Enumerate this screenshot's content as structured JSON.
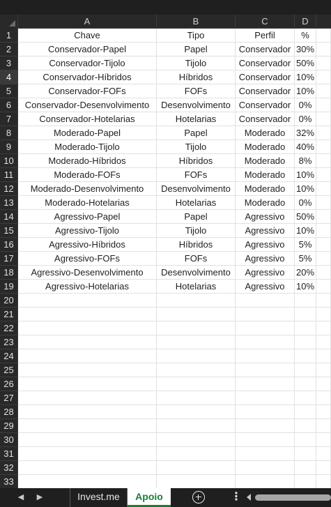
{
  "columns": [
    "A",
    "B",
    "C",
    "D"
  ],
  "rows": [
    [
      "Chave",
      "Tipo",
      "Perfil",
      "%"
    ],
    [
      "Conservador-Papel",
      "Papel",
      "Conservador",
      "30%"
    ],
    [
      "Conservador-Tijolo",
      "Tijolo",
      "Conservador",
      "50%"
    ],
    [
      "Conservador-Híbridos",
      "Híbridos",
      "Conservador",
      "10%"
    ],
    [
      "Conservador-FOFs",
      "FOFs",
      "Conservador",
      "10%"
    ],
    [
      "Conservador-Desenvolvimento",
      "Desenvolvimento",
      "Conservador",
      "0%"
    ],
    [
      "Conservador-Hotelarias",
      "Hotelarias",
      "Conservador",
      "0%"
    ],
    [
      "Moderado-Papel",
      "Papel",
      "Moderado",
      "32%"
    ],
    [
      "Moderado-Tijolo",
      "Tijolo",
      "Moderado",
      "40%"
    ],
    [
      "Moderado-Híbridos",
      "Híbridos",
      "Moderado",
      "8%"
    ],
    [
      "Moderado-FOFs",
      "FOFs",
      "Moderado",
      "10%"
    ],
    [
      "Moderado-Desenvolvimento",
      "Desenvolvimento",
      "Moderado",
      "10%"
    ],
    [
      "Moderado-Hotelarias",
      "Hotelarias",
      "Moderado",
      "0%"
    ],
    [
      "Agressivo-Papel",
      "Papel",
      "Agressivo",
      "50%"
    ],
    [
      "Agressivo-Tijolo",
      "Tijolo",
      "Agressivo",
      "10%"
    ],
    [
      "Agressivo-Híbridos",
      "Híbridos",
      "Agressivo",
      "5%"
    ],
    [
      "Agressivo-FOFs",
      "FOFs",
      "Agressivo",
      "5%"
    ],
    [
      "Agressivo-Desenvolvimento",
      "Desenvolvimento",
      "Agressivo",
      "20%"
    ],
    [
      "Agressivo-Hotelarias",
      "Hotelarias",
      "Agressivo",
      "10%"
    ]
  ],
  "row_numbers": [
    "1",
    "2",
    "3",
    "4",
    "5",
    "6",
    "7",
    "8",
    "9",
    "10",
    "11",
    "12",
    "13",
    "14",
    "15",
    "16",
    "17",
    "18",
    "19",
    "20",
    "21",
    "22",
    "23",
    "24",
    "25",
    "26",
    "27",
    "28",
    "29",
    "30",
    "31",
    "32",
    "33"
  ],
  "active_row": "4",
  "sheet_tabs": [
    {
      "label": "Invest.me",
      "active": false
    },
    {
      "label": "Apoio",
      "active": true
    }
  ],
  "nav": {
    "prev_icon": "chevron-left-icon",
    "next_icon": "chevron-right-icon",
    "add_icon": "plus-circle-icon",
    "more_icon": "more-vertical-icon"
  },
  "colors": {
    "active_tab_text": "#1a7f37",
    "header_bg": "#292929",
    "chrome_bg": "#1f1f1f",
    "gridline": "#e1e1e1"
  }
}
